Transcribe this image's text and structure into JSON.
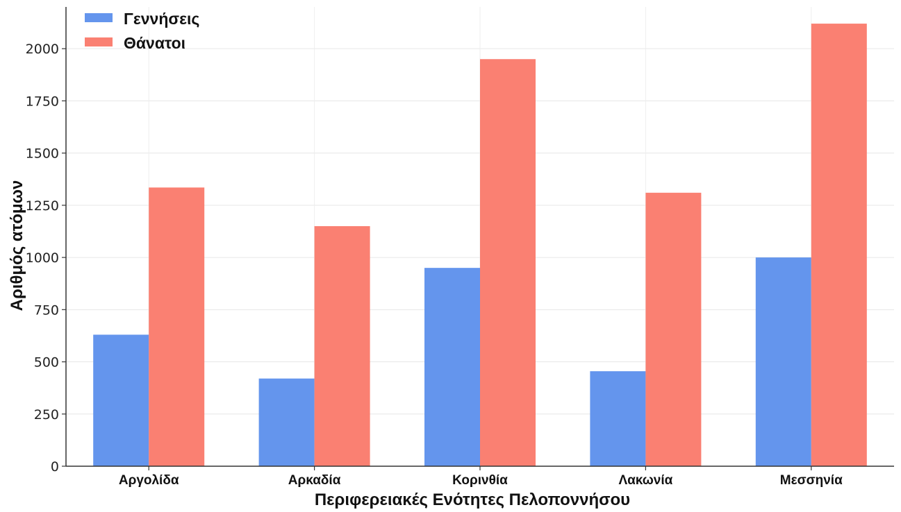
{
  "chart_data": {
    "type": "bar",
    "title": "",
    "xlabel": "Περιφερειακές Ενότητες Πελοποννήσου",
    "ylabel": "Αριθμός ατόμων",
    "categories": [
      "Αργολίδα",
      "Αρκαδία",
      "Κορινθία",
      "Λακωνία",
      "Μεσσηνία"
    ],
    "series": [
      {
        "name": "Γεννήσεις",
        "values": [
          630,
          420,
          950,
          455,
          1000
        ],
        "color": "#6495ED"
      },
      {
        "name": "Θάνατοι",
        "values": [
          1335,
          1150,
          1950,
          1310,
          2120
        ],
        "color": "#FA8072"
      }
    ],
    "ylim": [
      0,
      2200
    ],
    "yticks": [
      0,
      250,
      500,
      750,
      1000,
      1250,
      1500,
      1750,
      2000
    ],
    "grid": true,
    "legend": "top-left"
  }
}
